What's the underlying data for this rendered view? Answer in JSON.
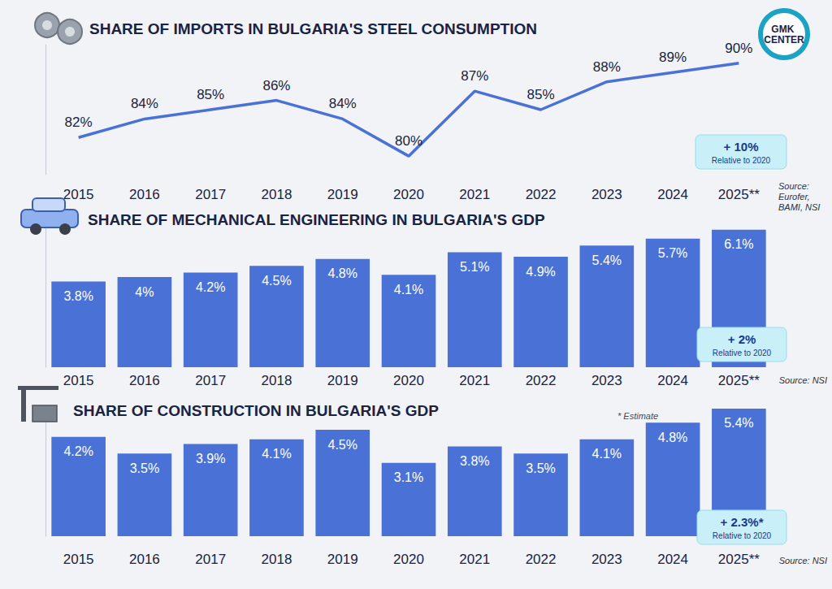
{
  "logo": "GMK CENTER",
  "chart_data": [
    {
      "type": "line",
      "title": "SHARE OF IMPORTS IN BULGARIA'S STEEL CONSUMPTION",
      "categories": [
        "2015",
        "2016",
        "2017",
        "2018",
        "2019",
        "2020",
        "2021",
        "2022",
        "2023",
        "2024",
        "2025**"
      ],
      "values": [
        82,
        84,
        85,
        86,
        84,
        80,
        87,
        85,
        88,
        89,
        90
      ],
      "value_labels": [
        "82%",
        "84%",
        "85%",
        "86%",
        "84%",
        "80%",
        "87%",
        "85%",
        "88%",
        "89%",
        "90%"
      ],
      "color": "#4a72d6",
      "ylim": [
        78,
        92
      ],
      "grid": false,
      "data_labels": true,
      "tick_labels": "x",
      "annotations": [
        {
          "text": "+ 10%",
          "subtext": "Relative to 2020"
        }
      ],
      "source": "Source: Eurofer, BAMI, NSI"
    },
    {
      "type": "bar",
      "title": "SHARE OF MECHANICAL ENGINEERING IN BULGARIA'S GDP",
      "categories": [
        "2015",
        "2016",
        "2017",
        "2018",
        "2019",
        "2020",
        "2021",
        "2022",
        "2023",
        "2024",
        "2025**"
      ],
      "values": [
        3.8,
        4,
        4.2,
        4.5,
        4.8,
        4.1,
        5.1,
        4.9,
        5.4,
        5.7,
        6.1
      ],
      "value_labels": [
        "3.8%",
        "4%",
        "4.2%",
        "4.5%",
        "4.8%",
        "4.1%",
        "5.1%",
        "4.9%",
        "5.4%",
        "5.7%",
        "6.1%"
      ],
      "color": "#4a72d6",
      "ylim": [
        0,
        6.2
      ],
      "grid": false,
      "data_labels": true,
      "tick_labels": "x",
      "annotations": [
        {
          "text": "+ 2%",
          "subtext": "Relative to 2020"
        }
      ],
      "source": "Source: NSI"
    },
    {
      "type": "bar",
      "title": "SHARE OF CONSTRUCTION IN BULGARIA'S GDP",
      "categories": [
        "2015",
        "2016",
        "2017",
        "2018",
        "2019",
        "2020",
        "2021",
        "2022",
        "2023",
        "2024",
        "2025**"
      ],
      "values": [
        4.2,
        3.5,
        3.9,
        4.1,
        4.5,
        3.1,
        3.8,
        3.5,
        4.1,
        4.8,
        5.4
      ],
      "value_labels": [
        "4.2%",
        "3.5%",
        "3.9%",
        "4.1%",
        "4.5%",
        "3.1%",
        "3.8%",
        "3.5%",
        "4.1%",
        "4.8%",
        "5.4%"
      ],
      "color": "#4a72d6",
      "ylim": [
        0,
        5.5
      ],
      "grid": false,
      "data_labels": true,
      "tick_labels": "x",
      "annotations": [
        {
          "text": "+ 2.3%*",
          "subtext": "Relative to 2020"
        }
      ],
      "note": "* Estimate",
      "source": "Source: NSI"
    }
  ]
}
